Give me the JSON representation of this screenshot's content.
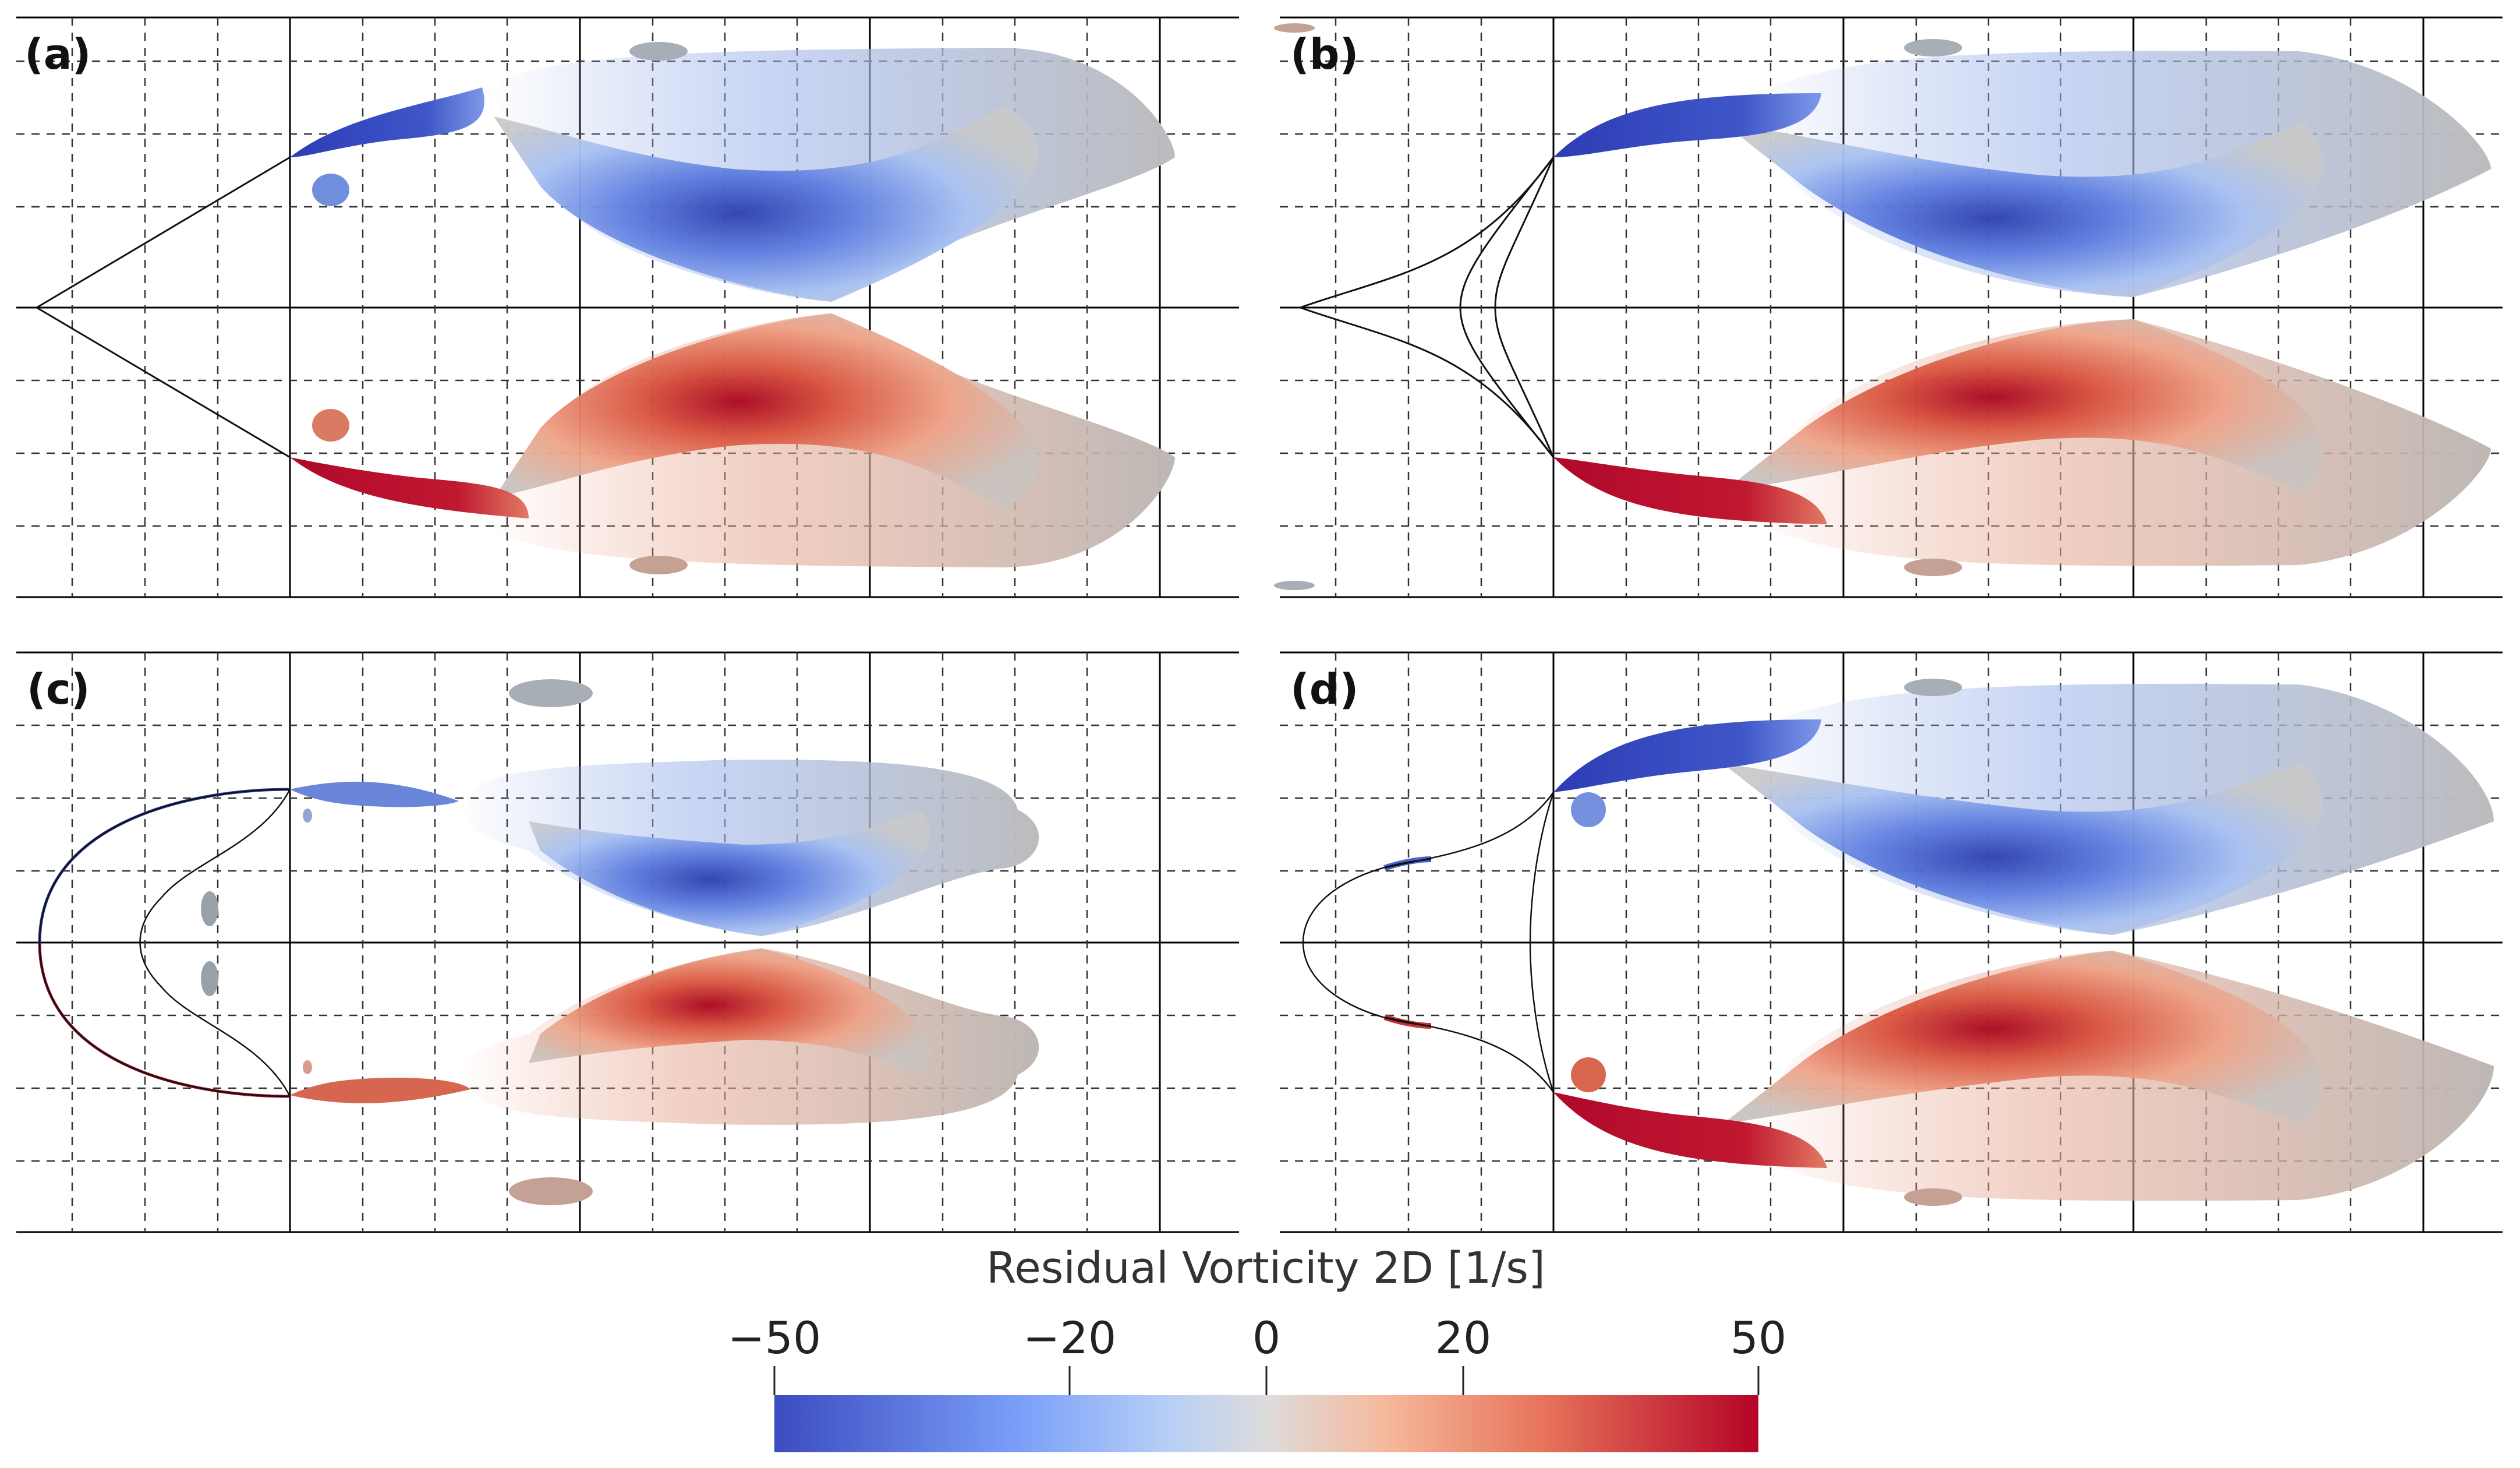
{
  "figure": {
    "panels": [
      {
        "id": "a",
        "label": "(a)",
        "geometry": "straight-wedge"
      },
      {
        "id": "b",
        "label": "(b)",
        "geometry": "concave-wedge"
      },
      {
        "id": "c",
        "label": "(c)",
        "geometry": "round-nose-cavity"
      },
      {
        "id": "d",
        "label": "(d)",
        "geometry": "round-nose-concave"
      }
    ],
    "colorbar": {
      "title": "Residual Vorticity 2D",
      "units": "[1/s]",
      "min": -50,
      "max": 50,
      "ticks": [
        {
          "value": -50,
          "label": "−50"
        },
        {
          "value": -20,
          "label": "−20"
        },
        {
          "value": 0,
          "label": "0"
        },
        {
          "value": 20,
          "label": "20"
        },
        {
          "value": 50,
          "label": "50"
        }
      ],
      "colors": {
        "low": "#3b4cc0",
        "mid_low": "#9ebefe",
        "mid": "#dddcdc",
        "mid_high": "#f4987a",
        "high": "#b40426"
      }
    }
  }
}
